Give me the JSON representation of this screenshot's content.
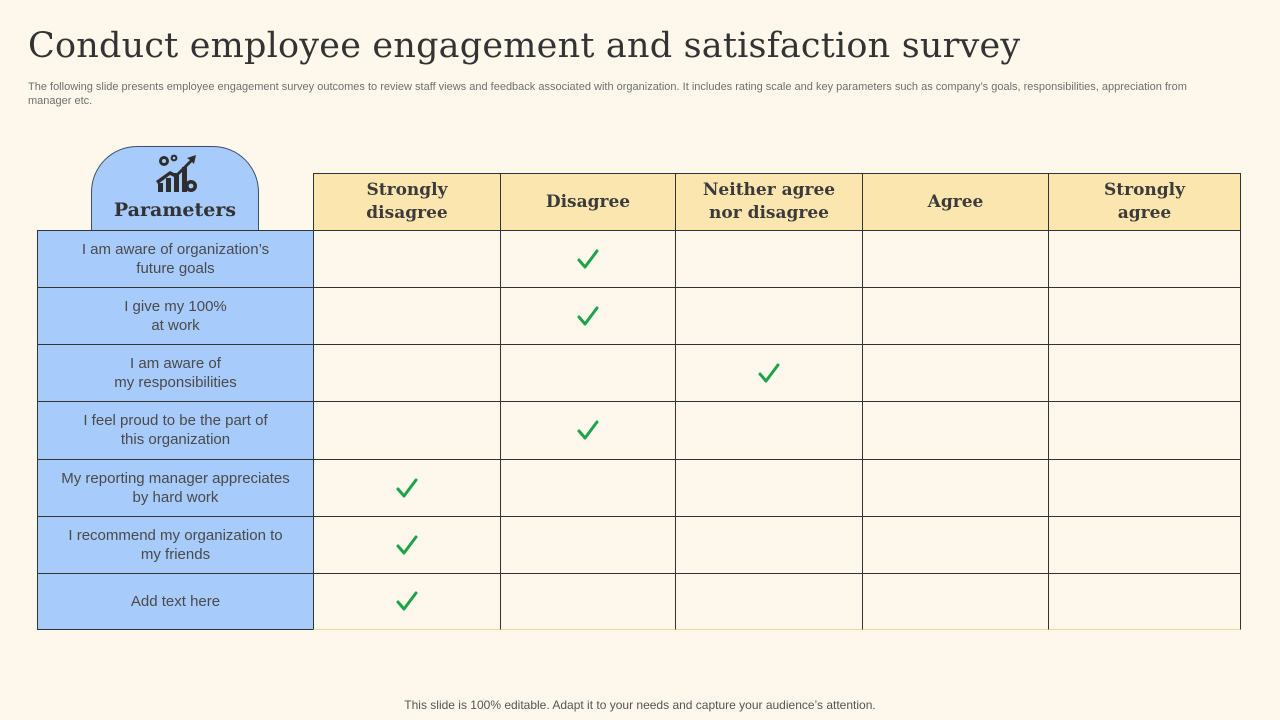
{
  "title": "Conduct employee engagement and satisfaction survey",
  "subtitle": "The following slide presents employee engagement survey outcomes to review staff views and feedback associated with organization. It includes rating scale and key parameters such as company’s goals, responsibilities, appreciation from manager etc.",
  "parameters_header": "Parameters",
  "parameters_icon": "growth-chart-gears-icon",
  "columns": [
    "Strongly\ndisagree",
    "Disagree",
    "Neither agree\nnor disagree",
    "Agree",
    "Strongly\nagree"
  ],
  "rows": [
    {
      "label": "I am aware of organization’s\nfuture goals",
      "checked": 1
    },
    {
      "label": "I give my 100%\nat work",
      "checked": 1
    },
    {
      "label": "I am aware of\nmy responsibilities",
      "checked": 2
    },
    {
      "label": "I feel proud to be the part of\nthis organization",
      "checked": 1
    },
    {
      "label": "My reporting manager appreciates\nby hard work",
      "checked": 0
    },
    {
      "label": "I recommend my organization to\nmy friends",
      "checked": 0
    },
    {
      "label": "Add text here",
      "checked": 0
    }
  ],
  "check_icon": "checkmark-icon",
  "colors": {
    "background": "#fdf8eb",
    "header_fill": "#fce6b0",
    "parameter_fill": "#a7cbfb",
    "check": "#1ea24a"
  },
  "footer": "This slide is 100% editable. Adapt it to your needs and capture your audience’s attention."
}
